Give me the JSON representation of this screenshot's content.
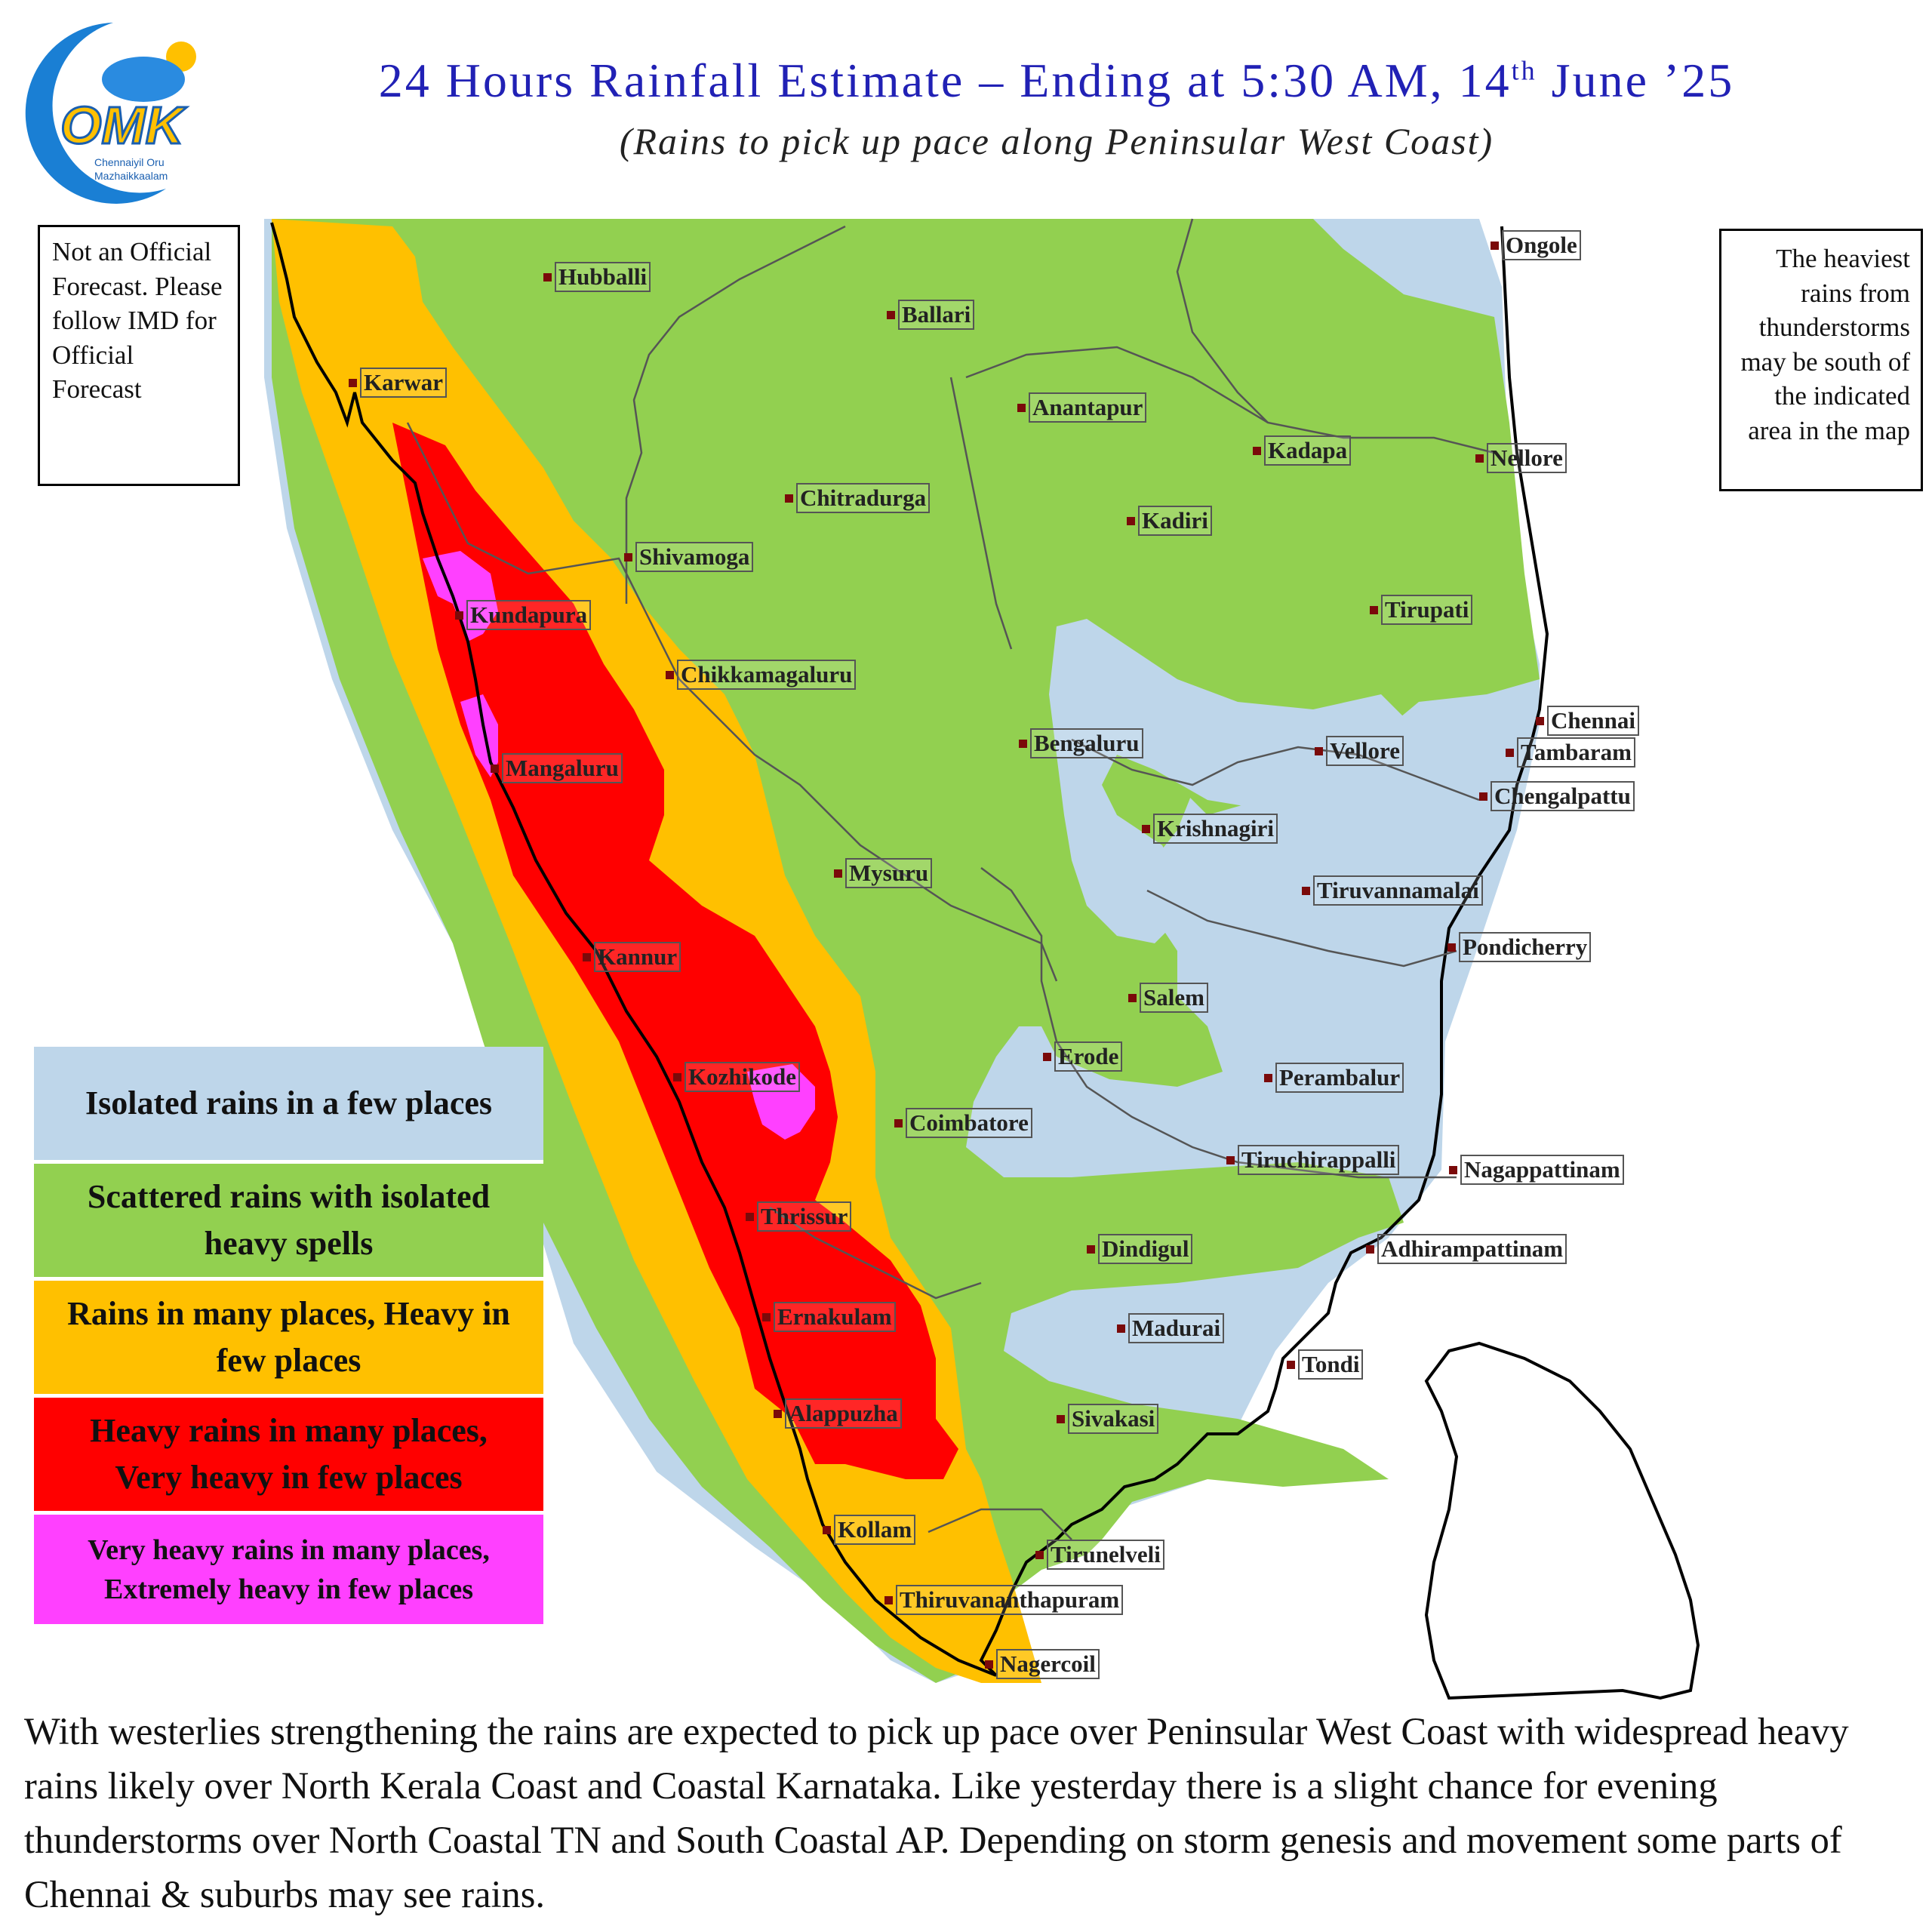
{
  "header": {
    "title_main": "24 Hours Rainfall Estimate – Ending at 5:30 AM, 14",
    "title_sup": "th",
    "title_end": " June ’25",
    "subtitle": "(Rains to pick up pace along Peninsular West Coast)"
  },
  "logo": {
    "letters": "OMK",
    "line1": "Chennaiyil Oru",
    "line2": "Mazhaikkaalam"
  },
  "notes": {
    "left": "Not an Official Forecast. Please follow IMD for Official Forecast",
    "right": "The heaviest rains from thunderstorms may be south of the indicated area in the map"
  },
  "legend": [
    {
      "label": "Isolated rains in a few places",
      "color": "#bed6ea"
    },
    {
      "label": "Scattered rains with isolated heavy spells",
      "color": "#92d050"
    },
    {
      "label": "Rains in many places, Heavy in few places",
      "color": "#ffc000"
    },
    {
      "label": "Heavy rains in many places, Very heavy in few places",
      "color": "#ff0000"
    },
    {
      "label": "Very heavy rains in many places, Extremely heavy in few places",
      "color": "#ff40ff"
    }
  ],
  "cities": [
    {
      "name": "Hubballi"
    },
    {
      "name": "Ballari"
    },
    {
      "name": "Ongole"
    },
    {
      "name": "Karwar"
    },
    {
      "name": "Anantapur"
    },
    {
      "name": "Kadapa"
    },
    {
      "name": "Nellore"
    },
    {
      "name": "Chitradurga"
    },
    {
      "name": "Kadiri"
    },
    {
      "name": "Shivamoga"
    },
    {
      "name": "Kundapura"
    },
    {
      "name": "Tirupati"
    },
    {
      "name": "Chikkamagaluru"
    },
    {
      "name": "Chennai"
    },
    {
      "name": "Bengaluru"
    },
    {
      "name": "Vellore"
    },
    {
      "name": "Tambaram"
    },
    {
      "name": "Mangaluru"
    },
    {
      "name": "Chengalpattu"
    },
    {
      "name": "Krishnagiri"
    },
    {
      "name": "Mysuru"
    },
    {
      "name": "Tiruvannamalai"
    },
    {
      "name": "Kannur"
    },
    {
      "name": "Pondicherry"
    },
    {
      "name": "Salem"
    },
    {
      "name": "Erode"
    },
    {
      "name": "Kozhikode"
    },
    {
      "name": "Perambalur"
    },
    {
      "name": "Coimbatore"
    },
    {
      "name": "Tiruchirappalli"
    },
    {
      "name": "Nagappattinam"
    },
    {
      "name": "Thrissur"
    },
    {
      "name": "Dindigul"
    },
    {
      "name": "Adhirampattinam"
    },
    {
      "name": "Ernakulam"
    },
    {
      "name": "Madurai"
    },
    {
      "name": "Tondi"
    },
    {
      "name": "Alappuzha"
    },
    {
      "name": "Sivakasi"
    },
    {
      "name": "Kollam"
    },
    {
      "name": "Tirunelveli"
    },
    {
      "name": "Thiruvananthapuram"
    },
    {
      "name": "Nagercoil"
    }
  ],
  "description": "With westerlies strengthening the rains are expected to pick up pace over Peninsular West Coast with widespread heavy rains likely over North Kerala Coast and Coastal Karnataka. Like yesterday there is a slight chance for evening thunderstorms over North Coastal TN and South Coastal AP. Depending on storm genesis and movement some parts of Chennai & suburbs may see rains."
}
